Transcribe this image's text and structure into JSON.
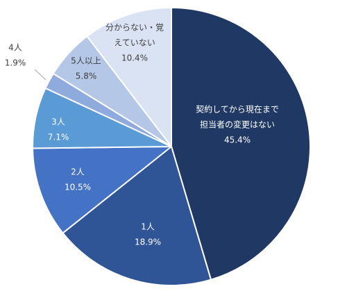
{
  "chart_data": {
    "type": "pie",
    "start": "top",
    "direction": "clockwise",
    "slices": [
      {
        "label_lines": [
          "契約してから現在まで",
          "担当者の変更はない"
        ],
        "value": 45.4,
        "value_label": "45.4%",
        "color": "#1f3864",
        "text_color": "#ffffff"
      },
      {
        "label_lines": [
          "1人"
        ],
        "value": 18.9,
        "value_label": "18.9%",
        "color": "#2f5597",
        "text_color": "#ffffff"
      },
      {
        "label_lines": [
          "2人"
        ],
        "value": 10.5,
        "value_label": "10.5%",
        "color": "#4472c4",
        "text_color": "#ffffff"
      },
      {
        "label_lines": [
          "3人"
        ],
        "value": 7.1,
        "value_label": "7.1%",
        "color": "#5b9bd5",
        "text_color": "#ffffff"
      },
      {
        "label_lines": [
          "4人"
        ],
        "value": 1.9,
        "value_label": "1.9%",
        "color": "#8faadc",
        "text_color": "#404040",
        "outside": true
      },
      {
        "label_lines": [
          "5人以上"
        ],
        "value": 5.8,
        "value_label": "5.8%",
        "color": "#b4c7e7",
        "text_color": "#404040"
      },
      {
        "label_lines": [
          "分からない・覚",
          "えていない"
        ],
        "value": 10.4,
        "value_label": "10.4%",
        "color": "#dae3f3",
        "text_color": "#404040"
      }
    ]
  }
}
